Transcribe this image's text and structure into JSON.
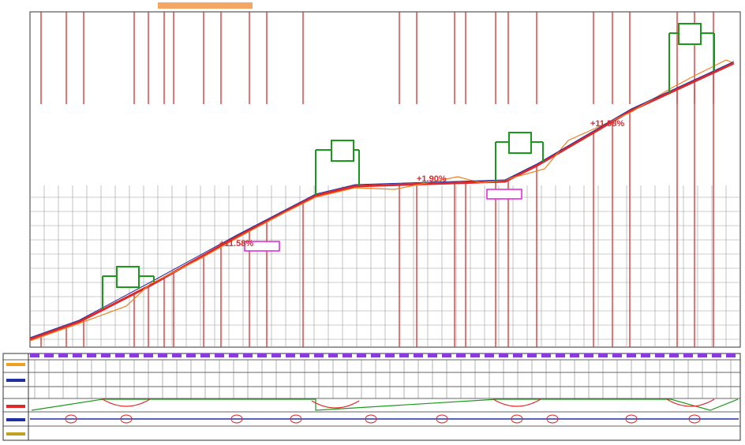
{
  "grades": [
    {
      "label": "+11.58%"
    },
    {
      "label": "+1.90%"
    },
    {
      "label": "+11.58%"
    }
  ]
}
